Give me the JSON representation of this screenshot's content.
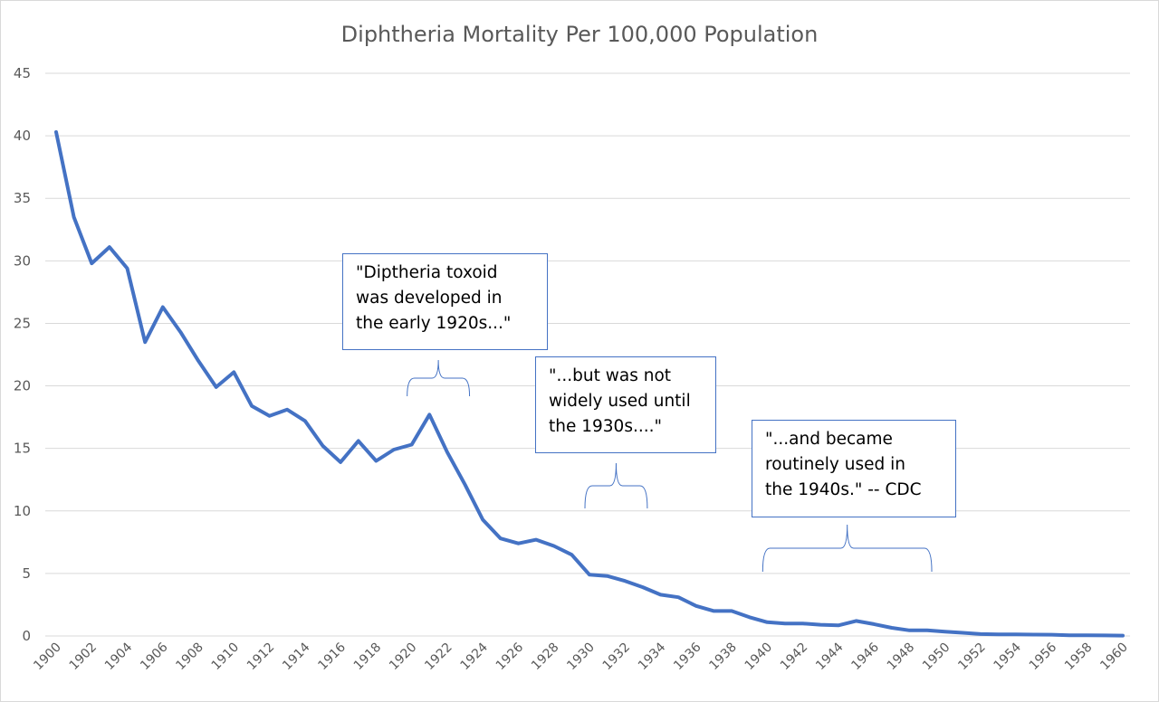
{
  "chart_data": {
    "type": "line",
    "title": "Diphtheria Mortality Per 100,000 Population",
    "xlabel": "",
    "ylabel": "",
    "ylim": [
      0,
      45
    ],
    "yticks": [
      0,
      5,
      10,
      15,
      20,
      25,
      30,
      35,
      40,
      45
    ],
    "xlim": [
      1900,
      1960
    ],
    "xticks": [
      1900,
      1902,
      1904,
      1906,
      1908,
      1910,
      1912,
      1914,
      1916,
      1918,
      1920,
      1922,
      1924,
      1926,
      1928,
      1930,
      1932,
      1934,
      1936,
      1938,
      1940,
      1942,
      1944,
      1946,
      1948,
      1950,
      1952,
      1954,
      1956,
      1958,
      1960
    ],
    "grid": "horizontal",
    "line_color": "#4472c4",
    "series": [
      {
        "x": [
          1900,
          1901,
          1902,
          1903,
          1904,
          1905,
          1906,
          1907,
          1908,
          1909,
          1910,
          1911,
          1912,
          1913,
          1914,
          1915,
          1916,
          1917,
          1918,
          1919,
          1920,
          1921,
          1922,
          1923,
          1924,
          1925,
          1926,
          1927,
          1928,
          1929,
          1930,
          1931,
          1932,
          1933,
          1934,
          1935,
          1936,
          1937,
          1938,
          1939,
          1940,
          1941,
          1942,
          1943,
          1944,
          1945,
          1946,
          1947,
          1948,
          1949,
          1950,
          1951,
          1952,
          1953,
          1954,
          1955,
          1956,
          1957,
          1958,
          1959,
          1960
        ],
        "y": [
          40.3,
          33.5,
          29.8,
          31.1,
          29.4,
          23.5,
          26.3,
          24.3,
          22.0,
          19.9,
          21.1,
          18.4,
          17.6,
          18.1,
          17.2,
          15.2,
          13.9,
          15.6,
          14.0,
          14.9,
          15.3,
          17.7,
          14.7,
          12.1,
          9.3,
          7.8,
          7.4,
          7.7,
          7.2,
          6.5,
          4.9,
          4.8,
          4.4,
          3.9,
          3.3,
          3.1,
          2.4,
          2.0,
          2.0,
          1.5,
          1.1,
          1.0,
          1.0,
          0.9,
          0.85,
          1.2,
          0.95,
          0.65,
          0.45,
          0.45,
          0.35,
          0.25,
          0.15,
          0.12,
          0.12,
          0.11,
          0.1,
          0.05,
          0.05,
          0.04,
          0.03
        ]
      }
    ],
    "annotations": [
      {
        "text": "\"Diptheria toxoid\nwas developed in\nthe early 1920s...\"",
        "bracket_years": [
          1920,
          1923
        ]
      },
      {
        "text": "\"...but was not\nwidely used until\nthe 1930s....\"",
        "bracket_years": [
          1930,
          1933
        ]
      },
      {
        "text": "\"...and became\nroutinely used in\nthe 1940s.\" -- CDC",
        "bracket_years": [
          1940,
          1949
        ]
      }
    ]
  }
}
